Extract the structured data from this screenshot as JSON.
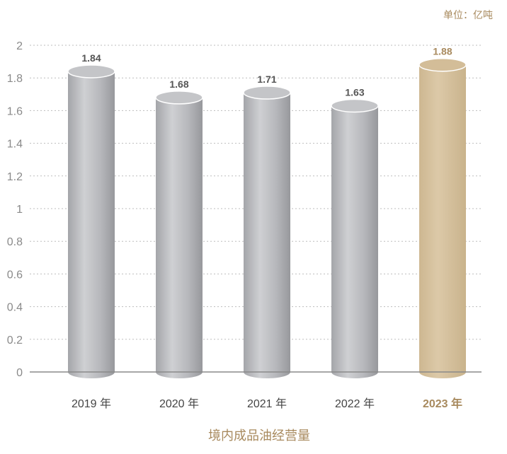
{
  "chart_data": {
    "type": "bar",
    "title": "境内成品油经营量",
    "unit": "单位：亿吨",
    "categories": [
      "2019 年",
      "2020 年",
      "2021 年",
      "2022 年",
      "2023 年"
    ],
    "values": [
      1.84,
      1.68,
      1.71,
      1.63,
      1.88
    ],
    "value_labels": [
      "1.84",
      "1.68",
      "1.71",
      "1.63",
      "1.88"
    ],
    "highlight_index": 4,
    "ylim": [
      0,
      2
    ],
    "yticks": [
      "0",
      "0.2",
      "0.4",
      "0.6",
      "0.8",
      "1",
      "1.2",
      "1.4",
      "1.6",
      "1.8",
      "2"
    ],
    "grid": "dotted-horizontal",
    "legend": "none",
    "colors": {
      "bar_gray_light": "#cfd0d3",
      "bar_gray_dark": "#9c9da1",
      "bar_highlight": "#d7c3a0",
      "highlight_text": "#a88a5e",
      "axis": "#8a8a8a",
      "grid": "#bdbdbd"
    }
  }
}
